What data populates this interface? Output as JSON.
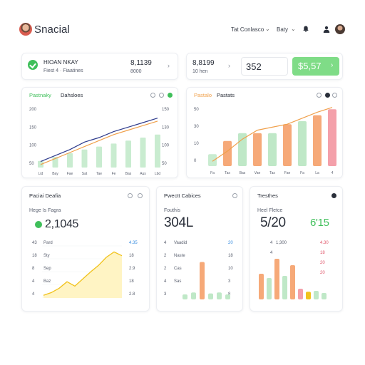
{
  "app": {
    "title": "Snacial"
  },
  "header": {
    "menu_label": "Tat Conlasco",
    "menu2_label": "Baty"
  },
  "kpi_row": {
    "left": {
      "title": "HIOAN NKAY",
      "subtitle": "Fiest 4 · Fiaatines",
      "value": "8,1139",
      "value_sub": "8000"
    },
    "right": {
      "value": "8,8199",
      "value_sub": "10 hen",
      "box_value": "352",
      "cta_label": "$5,57"
    }
  },
  "line_card": {
    "title": "Pastnaky",
    "title2": "Dahsloes",
    "chart_data": {
      "type": "line",
      "categories": [
        "Lid",
        "Bay",
        "Fae",
        "Sat",
        "Tae",
        "Fe",
        "Bas",
        "Aus",
        "Lbd"
      ],
      "y_left_ticks": [
        "200",
        "150",
        "100",
        "50"
      ],
      "y_right_ticks": [
        "150",
        "130",
        "100",
        "50"
      ],
      "ylim": [
        0,
        200
      ],
      "series": [
        {
          "values": [
            20,
            40,
            60,
            85,
            100,
            120,
            135,
            150,
            165
          ],
          "color": "#2d3a8c"
        },
        {
          "values": [
            10,
            30,
            50,
            70,
            90,
            110,
            125,
            140,
            155
          ],
          "color": "#f0a04b"
        }
      ],
      "bars": {
        "values": [
          22,
          35,
          48,
          60,
          70,
          80,
          90,
          100,
          110
        ],
        "color": "#c9ecd0"
      }
    }
  },
  "mixed_card": {
    "title": "Pastalo",
    "title2": "Pastats",
    "chart_data": {
      "type": "bar",
      "categories": [
        "Fa",
        "Tas",
        "Bas",
        "Vae",
        "Tas",
        "Fae",
        "Fa",
        "La",
        "4"
      ],
      "y_ticks": [
        "50",
        "30",
        "10",
        "0"
      ],
      "ylim": [
        0,
        100
      ],
      "bars": [
        {
          "value": 20,
          "color": "#c9ecd0"
        },
        {
          "value": 42,
          "color": "#f6a978"
        },
        {
          "value": 55,
          "color": "#bfe8c7"
        },
        {
          "value": 55,
          "color": "#f6a978"
        },
        {
          "value": 55,
          "color": "#bfe8c7"
        },
        {
          "value": 70,
          "color": "#f6a978"
        },
        {
          "value": 75,
          "color": "#bfe8c7"
        },
        {
          "value": 85,
          "color": "#f6a978"
        },
        {
          "value": 95,
          "color": "#f4a0aa"
        }
      ],
      "line": {
        "values": [
          8,
          25,
          45,
          60,
          65,
          70,
          80,
          90,
          98
        ],
        "color": "#f0a04b"
      }
    }
  },
  "area_card": {
    "title": "Paciai Deafia",
    "subtitle": "Hege Is Fagra",
    "value": "2,1045",
    "rows": [
      {
        "left": "43",
        "label": "Pard",
        "right": "4.35"
      },
      {
        "left": "18",
        "label": "Sty",
        "right": "18"
      },
      {
        "left": "8",
        "label": "Sep",
        "right": "2.9"
      },
      {
        "left": "4",
        "label": "Baz",
        "right": "18"
      },
      {
        "left": "4",
        "label": "",
        "right": "2.8"
      }
    ],
    "chart_data": {
      "type": "area",
      "values": [
        5,
        10,
        18,
        30,
        22,
        35,
        48,
        60,
        75,
        85,
        78
      ],
      "ylim": [
        0,
        100
      ],
      "color": "#f1c21b",
      "fill": "#fff4c4"
    }
  },
  "sales_card": {
    "title": "Pwectt Cabices",
    "subtitle": "Fouthis",
    "value": "304L",
    "rows": [
      {
        "left": "4",
        "label": "Vaadid",
        "right": "20"
      },
      {
        "left": "2",
        "label": "Naste",
        "right": "18"
      },
      {
        "left": "2",
        "label": "Cas",
        "right": "10"
      },
      {
        "left": "4",
        "label": "Sas",
        "right": "3"
      },
      {
        "left": "3",
        "label": "",
        "right": "8"
      }
    ],
    "chart_data": {
      "type": "bar",
      "bars": [
        {
          "value": 10,
          "color": "#bfe8c7"
        },
        {
          "value": 14,
          "color": "#bfe8c7"
        },
        {
          "value": 75,
          "color": "#f6a978"
        },
        {
          "value": 12,
          "color": "#bfe8c7"
        },
        {
          "value": 14,
          "color": "#bfe8c7"
        },
        {
          "value": 10,
          "color": "#bfe8c7"
        }
      ],
      "ylim": [
        0,
        100
      ]
    }
  },
  "trend_card": {
    "title": "Tresthes",
    "subtitle": "Heel Fletce",
    "value_left": "5/20",
    "value_right": "6'15",
    "rows": [
      {
        "left": "4",
        "label": "1,300",
        "right": "4.30"
      },
      {
        "left": "4",
        "label": "",
        "right": "18"
      },
      {
        "left": "",
        "label": "",
        "right": "20"
      },
      {
        "left": "",
        "label": "",
        "right": "20"
      }
    ],
    "chart_data": {
      "type": "bar",
      "bars": [
        {
          "value": 60,
          "color": "#f6a978"
        },
        {
          "value": 50,
          "color": "#bfe8c7"
        },
        {
          "value": 95,
          "color": "#f6a978"
        },
        {
          "value": 55,
          "color": "#bfe8c7"
        },
        {
          "value": 80,
          "color": "#f6a978"
        },
        {
          "value": 25,
          "color": "#f4a0aa"
        },
        {
          "value": 18,
          "color": "#f1c21b"
        },
        {
          "value": 20,
          "color": "#bfe8c7"
        },
        {
          "value": 15,
          "color": "#bfe8c7"
        }
      ],
      "ylim": [
        0,
        100
      ]
    }
  },
  "icons": {
    "bell": "bell-icon",
    "user": "user-icon",
    "chevron": "chevron-down-icon",
    "arrow": "chevron-right-icon",
    "settings": "settings-icon"
  },
  "colors": {
    "accent": "#7fdc87",
    "brand_green": "#3fbf5a"
  }
}
